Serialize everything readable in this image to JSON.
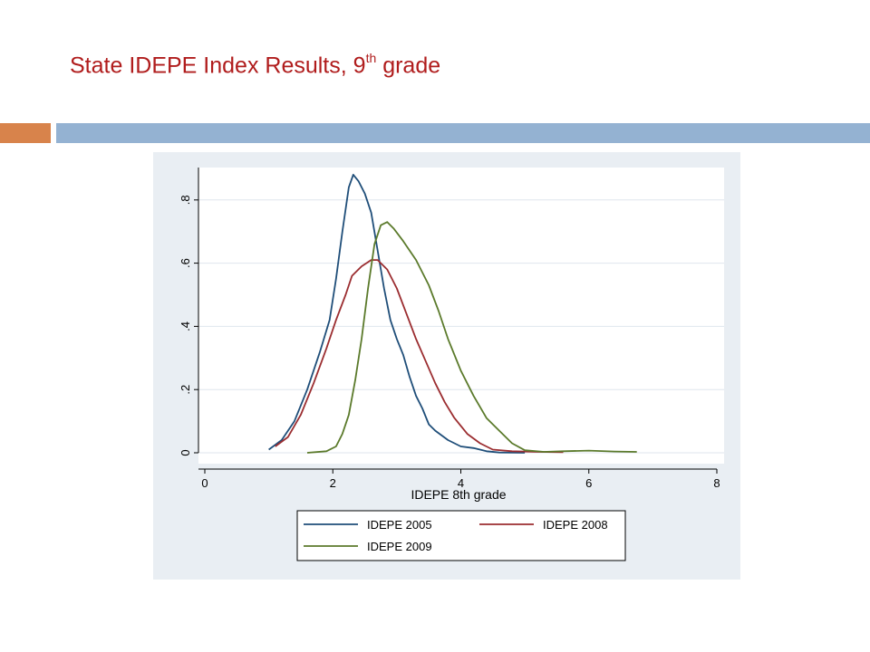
{
  "slide": {
    "title_main": "State IDEPE Index Results, 9",
    "title_sup": "th",
    "title_tail": " grade"
  },
  "colors": {
    "title": "#b01c1c",
    "accent_orange": "#d8834b",
    "accent_blue": "#94b2d2",
    "panel_bg": "#e9eef3"
  },
  "chart_data": {
    "type": "line",
    "title": "",
    "xlabel": "IDEPE 8th grade",
    "ylabel": "",
    "xlim": [
      0,
      8
    ],
    "ylim": [
      0,
      0.9
    ],
    "xticks": [
      0,
      2,
      4,
      6,
      8
    ],
    "xtick_labels": [
      "0",
      "2",
      "4",
      "6",
      "8"
    ],
    "yticks": [
      0,
      0.2,
      0.4,
      0.6,
      0.8
    ],
    "ytick_labels": [
      "0",
      ".2",
      ".4",
      ".6",
      ".8"
    ],
    "grid": true,
    "legend_position": "bottom",
    "series": [
      {
        "name": "IDEPE 2005",
        "color": "#1f4e79",
        "points": [
          [
            1.0,
            0.01
          ],
          [
            1.2,
            0.04
          ],
          [
            1.4,
            0.1
          ],
          [
            1.6,
            0.2
          ],
          [
            1.8,
            0.32
          ],
          [
            1.95,
            0.42
          ],
          [
            2.05,
            0.55
          ],
          [
            2.15,
            0.7
          ],
          [
            2.25,
            0.84
          ],
          [
            2.32,
            0.88
          ],
          [
            2.4,
            0.86
          ],
          [
            2.5,
            0.82
          ],
          [
            2.6,
            0.76
          ],
          [
            2.7,
            0.64
          ],
          [
            2.8,
            0.52
          ],
          [
            2.9,
            0.42
          ],
          [
            3.0,
            0.36
          ],
          [
            3.1,
            0.31
          ],
          [
            3.2,
            0.24
          ],
          [
            3.3,
            0.18
          ],
          [
            3.4,
            0.14
          ],
          [
            3.5,
            0.09
          ],
          [
            3.6,
            0.07
          ],
          [
            3.8,
            0.04
          ],
          [
            4.0,
            0.02
          ],
          [
            4.2,
            0.015
          ],
          [
            4.4,
            0.005
          ],
          [
            4.6,
            0.001
          ],
          [
            5.0,
            0.0
          ]
        ]
      },
      {
        "name": "IDEPE 2008",
        "color": "#9b2d30",
        "points": [
          [
            1.1,
            0.02
          ],
          [
            1.3,
            0.05
          ],
          [
            1.5,
            0.12
          ],
          [
            1.7,
            0.22
          ],
          [
            1.9,
            0.33
          ],
          [
            2.05,
            0.42
          ],
          [
            2.2,
            0.5
          ],
          [
            2.3,
            0.56
          ],
          [
            2.45,
            0.59
          ],
          [
            2.6,
            0.61
          ],
          [
            2.7,
            0.61
          ],
          [
            2.85,
            0.58
          ],
          [
            3.0,
            0.52
          ],
          [
            3.15,
            0.44
          ],
          [
            3.3,
            0.36
          ],
          [
            3.45,
            0.29
          ],
          [
            3.6,
            0.22
          ],
          [
            3.75,
            0.16
          ],
          [
            3.9,
            0.11
          ],
          [
            4.1,
            0.06
          ],
          [
            4.3,
            0.03
          ],
          [
            4.5,
            0.01
          ],
          [
            4.8,
            0.005
          ],
          [
            5.2,
            0.003
          ],
          [
            5.6,
            0.002
          ]
        ]
      },
      {
        "name": "IDEPE 2009",
        "color": "#5b7a2b",
        "points": [
          [
            1.6,
            0.0
          ],
          [
            1.9,
            0.005
          ],
          [
            2.05,
            0.02
          ],
          [
            2.15,
            0.06
          ],
          [
            2.25,
            0.12
          ],
          [
            2.35,
            0.23
          ],
          [
            2.45,
            0.36
          ],
          [
            2.55,
            0.52
          ],
          [
            2.65,
            0.66
          ],
          [
            2.75,
            0.72
          ],
          [
            2.85,
            0.73
          ],
          [
            2.95,
            0.71
          ],
          [
            3.1,
            0.67
          ],
          [
            3.3,
            0.61
          ],
          [
            3.5,
            0.53
          ],
          [
            3.65,
            0.45
          ],
          [
            3.8,
            0.36
          ],
          [
            4.0,
            0.26
          ],
          [
            4.2,
            0.18
          ],
          [
            4.4,
            0.11
          ],
          [
            4.6,
            0.07
          ],
          [
            4.8,
            0.03
          ],
          [
            5.0,
            0.008
          ],
          [
            5.3,
            0.003
          ],
          [
            5.6,
            0.005
          ],
          [
            6.0,
            0.007
          ],
          [
            6.4,
            0.004
          ],
          [
            6.75,
            0.003
          ]
        ]
      }
    ]
  }
}
